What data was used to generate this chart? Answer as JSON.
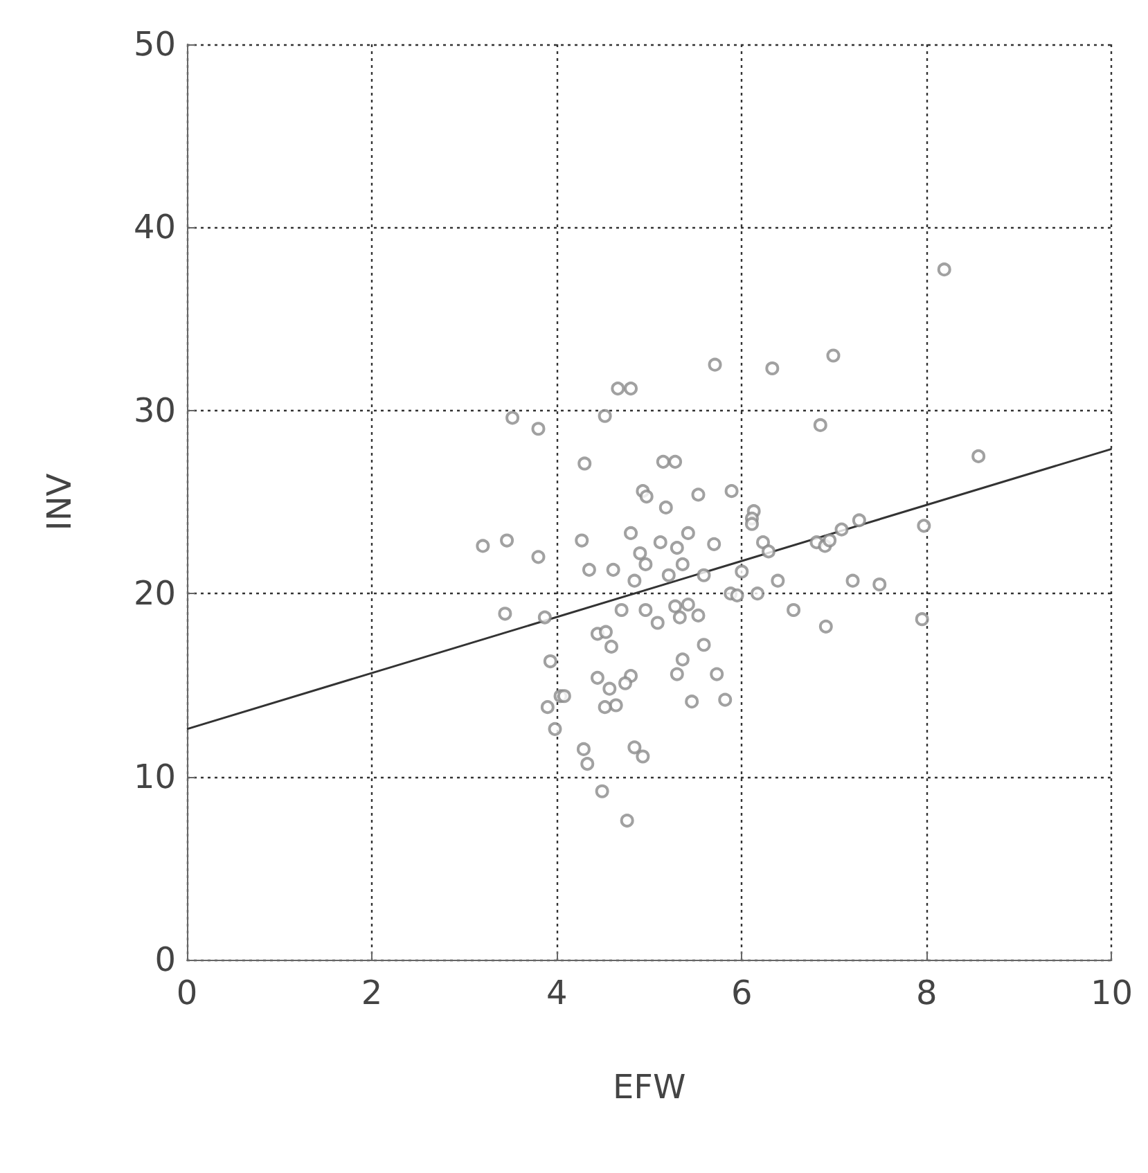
{
  "chart_data": {
    "type": "scatter",
    "xlabel": "EFW",
    "ylabel": "INV",
    "xlim": [
      0,
      10
    ],
    "ylim": [
      0,
      50
    ],
    "xticks": [
      0,
      2,
      4,
      6,
      8,
      10
    ],
    "yticks": [
      0,
      10,
      20,
      30,
      40,
      50
    ],
    "grid": true,
    "marker": "circle",
    "series": [
      {
        "color": "#8a8a8a",
        "x": [
          3.2,
          3.46,
          3.52,
          3.44,
          3.8,
          3.8,
          3.93,
          3.9,
          3.98,
          4.04,
          4.08,
          3.87,
          4.3,
          4.66,
          4.8,
          4.52,
          4.27,
          4.35,
          4.61,
          4.8,
          4.84,
          4.9,
          4.93,
          4.97,
          4.96,
          4.96,
          4.44,
          4.53,
          4.59,
          4.7,
          4.8,
          4.74,
          4.64,
          4.52,
          4.44,
          4.57,
          4.29,
          4.33,
          4.49,
          4.76,
          4.84,
          4.93,
          5.15,
          5.28,
          5.18,
          5.12,
          5.3,
          5.42,
          5.36,
          5.21,
          5.59,
          5.53,
          5.28,
          5.33,
          5.42,
          5.36,
          5.3,
          5.09,
          5.46,
          5.53,
          5.59,
          5.71,
          5.89,
          5.7,
          5.88,
          5.73,
          5.82,
          5.95,
          6.0,
          6.13,
          6.11,
          6.11,
          6.23,
          6.29,
          6.17,
          6.39,
          6.33,
          6.56,
          6.81,
          6.85,
          6.9,
          6.99,
          6.95,
          6.91,
          7.08,
          7.27,
          7.2,
          7.49,
          8.19,
          8.56,
          7.97,
          7.95
        ],
        "values": [
          22.6,
          22.9,
          29.6,
          18.9,
          29.0,
          22.0,
          16.3,
          13.8,
          12.6,
          14.4,
          14.4,
          18.7,
          27.1,
          31.2,
          31.2,
          29.7,
          22.9,
          21.3,
          21.3,
          23.3,
          20.7,
          22.2,
          25.6,
          25.3,
          21.6,
          19.1,
          17.8,
          17.9,
          17.1,
          19.1,
          15.5,
          15.1,
          13.9,
          13.8,
          15.4,
          14.8,
          11.5,
          10.7,
          9.2,
          7.6,
          11.6,
          11.1,
          27.2,
          27.2,
          24.7,
          22.8,
          22.5,
          23.3,
          21.6,
          21.0,
          21.0,
          25.4,
          19.3,
          18.7,
          19.4,
          16.4,
          15.6,
          18.4,
          14.1,
          18.8,
          17.2,
          32.5,
          25.6,
          22.7,
          20.0,
          15.6,
          14.2,
          19.9,
          21.2,
          24.5,
          24.1,
          23.8,
          22.8,
          22.3,
          20.0,
          20.7,
          32.3,
          19.1,
          22.8,
          29.2,
          22.6,
          33.0,
          22.9,
          18.2,
          23.5,
          24.0,
          20.7,
          20.5,
          37.7,
          27.5,
          23.7,
          18.6
        ]
      },
      {
        "type": "line",
        "color": "#333333",
        "x": [
          0,
          10
        ],
        "values": [
          12.6,
          27.9
        ],
        "marker": "none",
        "line_style": "solid"
      }
    ]
  }
}
